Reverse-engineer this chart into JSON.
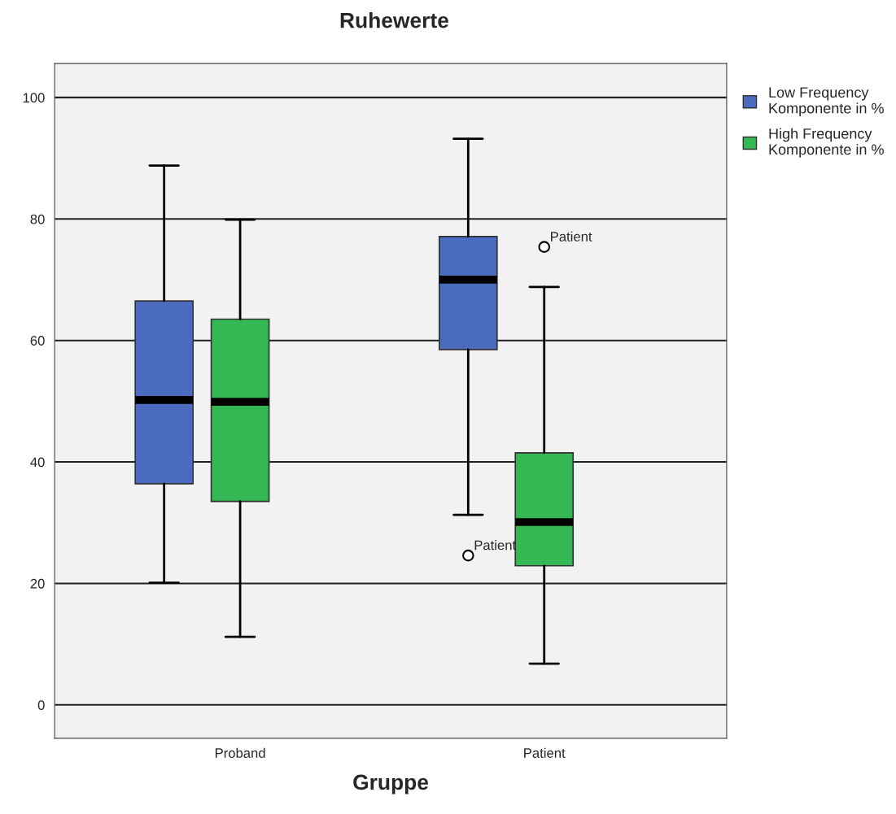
{
  "chart_data": {
    "type": "box",
    "title": "Ruhewerte",
    "xlabel": "Gruppe",
    "categories": [
      "Proband",
      "Patient"
    ],
    "series": [
      {
        "name": "Low Frequency\nKomponente in %",
        "color": "#4a6bbf",
        "boxes": [
          {
            "low": 20.1,
            "q1": 36.4,
            "median": 50.2,
            "q3": 66.5,
            "high": 88.8
          },
          {
            "low": 31.3,
            "q1": 58.5,
            "median": 70.0,
            "q3": 77.1,
            "high": 93.2,
            "outliers": [
              24.6
            ]
          }
        ]
      },
      {
        "name": "High Frequency\nKomponente in %",
        "color": "#34b854",
        "boxes": [
          {
            "low": 11.2,
            "q1": 33.5,
            "median": 49.9,
            "q3": 63.5,
            "high": 79.9
          },
          {
            "low": 6.8,
            "q1": 22.9,
            "median": 30.1,
            "q3": 41.5,
            "high": 68.8,
            "outliers": [
              75.4
            ]
          }
        ]
      }
    ],
    "ylim": [
      -5.5,
      105.6
    ],
    "yticks": [
      0,
      20,
      40,
      60,
      80,
      100
    ],
    "grid": "y",
    "legend": "right",
    "annotations": [
      "Patient",
      "Patient"
    ]
  }
}
